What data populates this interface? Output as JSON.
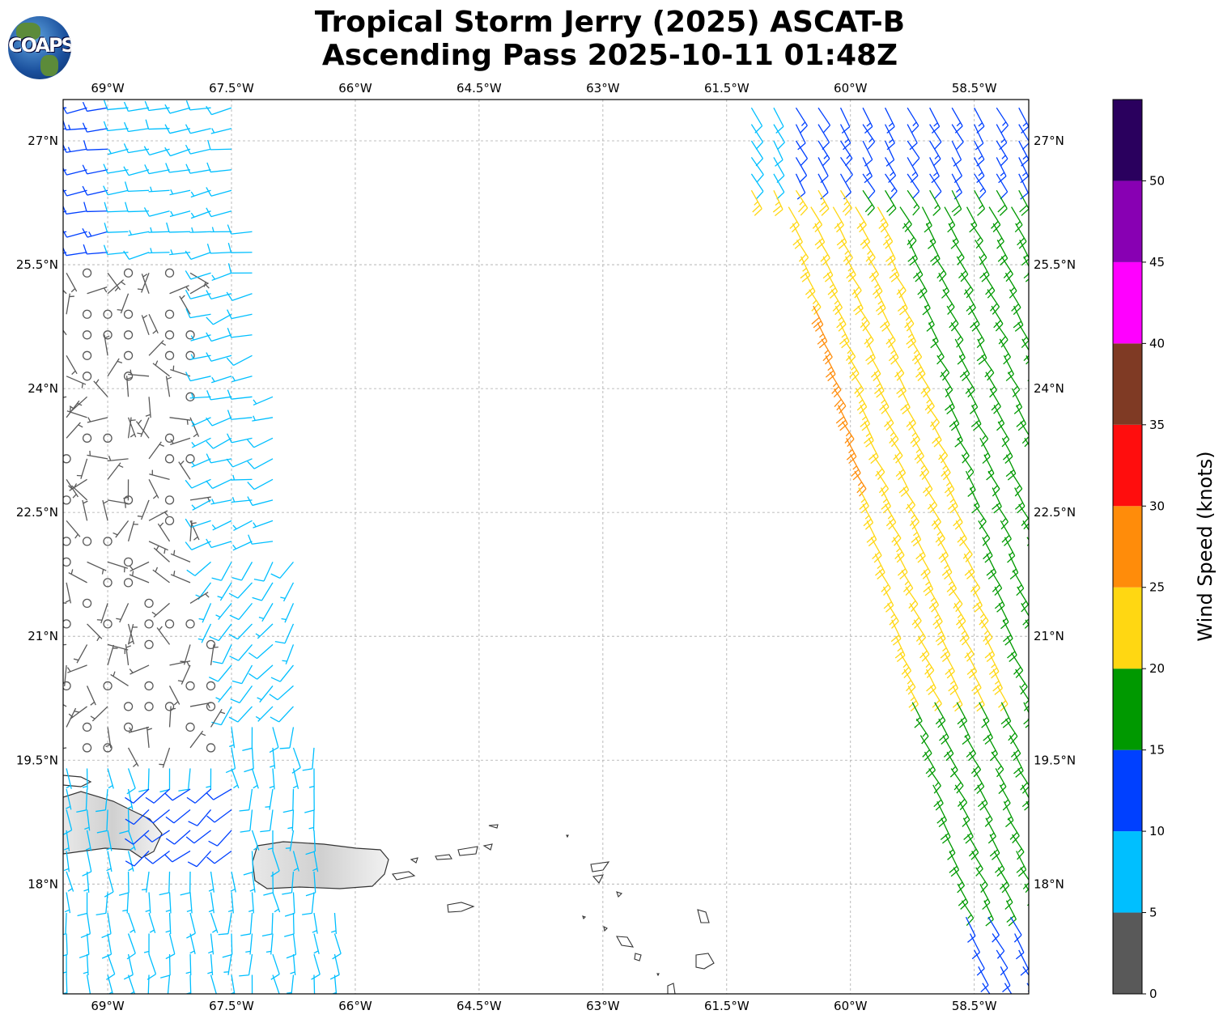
{
  "title": {
    "line1": "Tropical Storm Jerry (2025) ASCAT-B",
    "line2": "Ascending Pass 2025-10-11 01:48Z"
  },
  "logo": {
    "text": "COAPS"
  },
  "chart_data": {
    "type": "map",
    "subtype": "wind-barbs",
    "extent": {
      "lon": [
        -69.54,
        -57.84
      ],
      "lat": [
        16.67,
        27.5
      ]
    },
    "grid": true,
    "x_ticks": [
      "69°W",
      "67.5°W",
      "66°W",
      "64.5°W",
      "63°W",
      "61.5°W",
      "60°W",
      "58.5°W"
    ],
    "x_tick_values": [
      -69,
      -67.5,
      -66,
      -64.5,
      -63,
      -61.5,
      -60,
      -58.5
    ],
    "y_ticks": [
      "27°N",
      "25.5°N",
      "24°N",
      "22.5°N",
      "21°N",
      "19.5°N",
      "18°N"
    ],
    "y_tick_values": [
      27,
      25.5,
      24,
      22.5,
      21,
      19.5,
      18
    ],
    "colorbar": {
      "label": "Wind Speed (knots)",
      "ticks": [
        "0",
        "5",
        "10",
        "15",
        "20",
        "25",
        "30",
        "35",
        "40",
        "45",
        "50"
      ],
      "range": [
        0,
        55
      ],
      "bounds": [
        0,
        5,
        10,
        15,
        20,
        25,
        30,
        35,
        40,
        45,
        50,
        55
      ],
      "colors": [
        "#595959",
        "#00bfff",
        "#0040ff",
        "#009900",
        "#ffd712",
        "#ff8c0a",
        "#ff0d0d",
        "#7f3a24",
        "#ff00ff",
        "#8800b3",
        "#2a005e"
      ]
    }
  }
}
